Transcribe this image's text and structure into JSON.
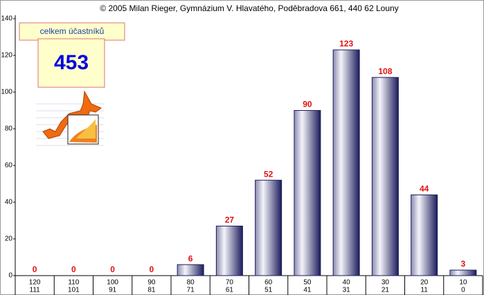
{
  "chart_data": {
    "type": "bar",
    "title": "© 2005 Milan Rieger, Gymnázium V. Hlavatého, Poděbradova 661, 440 62 Louny",
    "annotations": [
      "celkem účastníků",
      "453"
    ],
    "categories": [
      [
        "120",
        "111"
      ],
      [
        "110",
        "101"
      ],
      [
        "100",
        "91"
      ],
      [
        "90",
        "81"
      ],
      [
        "80",
        "71"
      ],
      [
        "70",
        "61"
      ],
      [
        "60",
        "51"
      ],
      [
        "50",
        "41"
      ],
      [
        "40",
        "31"
      ],
      [
        "30",
        "21"
      ],
      [
        "20",
        "11"
      ],
      [
        "10",
        "0"
      ]
    ],
    "values": [
      0,
      0,
      0,
      0,
      6,
      27,
      52,
      90,
      123,
      108,
      44,
      3
    ],
    "color": "#1c1c5c",
    "value_label_color": "#e01010",
    "ylim": [
      0,
      140
    ],
    "yticks": [
      0,
      20,
      40,
      60,
      80,
      100,
      120,
      140
    ],
    "grid": false
  }
}
